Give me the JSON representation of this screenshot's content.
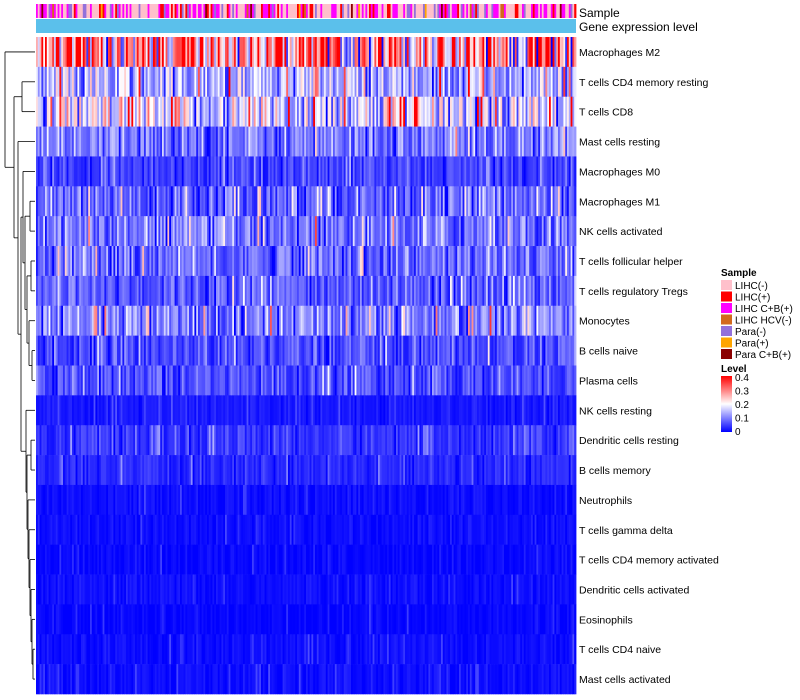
{
  "chart_data": {
    "type": "heatmap",
    "title": "",
    "annotation_tracks": [
      "Sample",
      "Gene expression level"
    ],
    "rows": [
      {
        "name": "Macrophages M2",
        "mean_level": 0.28
      },
      {
        "name": "T cells CD4 memory resting",
        "mean_level": 0.13
      },
      {
        "name": "T cells CD8",
        "mean_level": 0.16
      },
      {
        "name": "Mast cells resting",
        "mean_level": 0.09
      },
      {
        "name": "Macrophages M0",
        "mean_level": 0.05
      },
      {
        "name": "Macrophages M1",
        "mean_level": 0.08
      },
      {
        "name": "NK cells activated",
        "mean_level": 0.09
      },
      {
        "name": "T cells follicular helper",
        "mean_level": 0.08
      },
      {
        "name": "T cells regulatory  Tregs",
        "mean_level": 0.07
      },
      {
        "name": "Monocytes",
        "mean_level": 0.1
      },
      {
        "name": "B cells naive",
        "mean_level": 0.06
      },
      {
        "name": "Plasma cells",
        "mean_level": 0.06
      },
      {
        "name": "NK cells resting",
        "mean_level": 0.02
      },
      {
        "name": "Dendritic cells resting",
        "mean_level": 0.04
      },
      {
        "name": "B cells memory",
        "mean_level": 0.03
      },
      {
        "name": "Neutrophils",
        "mean_level": 0.01
      },
      {
        "name": "T cells gamma delta",
        "mean_level": 0.01
      },
      {
        "name": "T cells CD4 memory activated",
        "mean_level": 0.005
      },
      {
        "name": "Dendritic cells activated",
        "mean_level": 0.01
      },
      {
        "name": "Eosinophils",
        "mean_level": 0.005
      },
      {
        "name": "T cells CD4 naive",
        "mean_level": 0.01
      },
      {
        "name": "Mast cells activated",
        "mean_level": 0.01
      }
    ],
    "n_columns": 300,
    "legend": {
      "sample": {
        "title": "Sample",
        "entries": [
          {
            "label": "LIHC(-)",
            "color": "#ffc0cb"
          },
          {
            "label": "LIHC(+)",
            "color": "#ff0000"
          },
          {
            "label": "LIHC C+B(+)",
            "color": "#ff00ff"
          },
          {
            "label": "LIHC HCV(-)",
            "color": "#d2691e"
          },
          {
            "label": "Para(-)",
            "color": "#9370db"
          },
          {
            "label": "Para(+)",
            "color": "#ffa500"
          },
          {
            "label": "Para C+B(+)",
            "color": "#8b0000"
          }
        ]
      },
      "level": {
        "title": "Level",
        "ticks": [
          "0.4",
          "0.3",
          "0.2",
          "0.1",
          "0"
        ],
        "range": [
          0,
          0.4
        ],
        "colors": [
          "#0000ff",
          "#ffffff",
          "#ff0000"
        ]
      }
    },
    "gene_expression_color": "#5bc0eb"
  }
}
